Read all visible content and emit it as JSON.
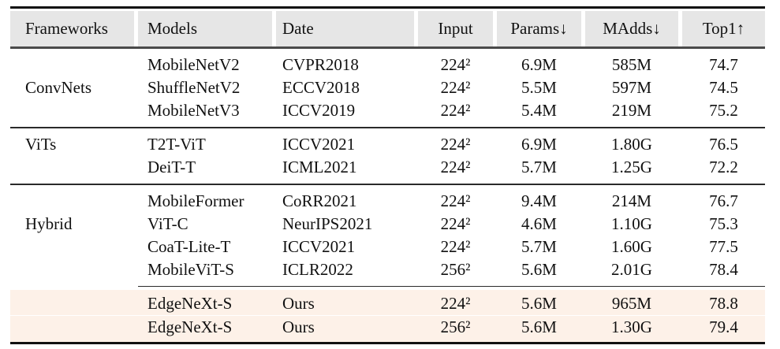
{
  "table": {
    "headers": [
      "Frameworks",
      "Models",
      "Date",
      "Input",
      "Params↓",
      "MAdds↓",
      "Top1↑"
    ],
    "groups": [
      {
        "framework": "ConvNets",
        "label_row": 1,
        "separator": "none",
        "highlight": false,
        "rows": [
          [
            "MobileNetV2",
            "CVPR2018",
            "224²",
            "6.9M",
            "585M",
            "74.7"
          ],
          [
            "ShuffleNetV2",
            "ECCV2018",
            "224²",
            "5.5M",
            "597M",
            "74.5"
          ],
          [
            "MobileNetV3",
            "ICCV2019",
            "224²",
            "5.4M",
            "219M",
            "75.2"
          ]
        ]
      },
      {
        "framework": "ViTs",
        "label_row": 0,
        "separator": "full",
        "highlight": false,
        "rows": [
          [
            "T2T-ViT",
            "ICCV2021",
            "224²",
            "6.9M",
            "1.80G",
            "76.5"
          ],
          [
            "DeiT-T",
            "ICML2021",
            "224²",
            "5.7M",
            "1.25G",
            "72.2"
          ]
        ]
      },
      {
        "framework": "Hybrid",
        "label_row": 1,
        "separator": "full",
        "highlight": false,
        "rows": [
          [
            "MobileFormer",
            "CoRR2021",
            "224²",
            "9.4M",
            "214M",
            "76.7"
          ],
          [
            "ViT-C",
            "NeurIPS2021",
            "224²",
            "4.6M",
            "1.10G",
            "75.3"
          ],
          [
            "CoaT-Lite-T",
            "ICCV2021",
            "224²",
            "5.7M",
            "1.60G",
            "77.5"
          ],
          [
            "MobileViT-S",
            "ICLR2022",
            "256²",
            "5.6M",
            "2.01G",
            "78.4"
          ]
        ]
      },
      {
        "framework": "",
        "label_row": -1,
        "separator": "partial",
        "highlight": true,
        "rows": [
          [
            "EdgeNeXt-S",
            "Ours",
            "224²",
            "5.6M",
            "965M",
            "78.8"
          ],
          [
            "EdgeNeXt-S",
            "Ours",
            "256²",
            "5.6M",
            "1.30G",
            "79.4"
          ]
        ]
      }
    ],
    "colors": {
      "header_bg": "#e6e6e6",
      "highlight_bg": "#fdf1e8",
      "rule_heavy": "#4a4a4a",
      "rule_dark": "#111111"
    }
  }
}
